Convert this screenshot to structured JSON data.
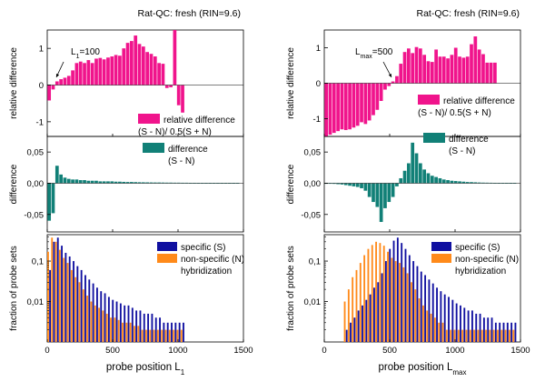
{
  "chart_data": [
    {
      "type": "bar",
      "title": "Rat-QC: fresh (RIN=9.6)",
      "xlabel": "probe position L",
      "xlabel_sub": "1",
      "xlim": [
        0,
        1500
      ],
      "xticks": [
        0,
        500,
        1000,
        1500
      ],
      "bin_width": 30,
      "colors": {
        "relative": "#F0148C",
        "difference": "#118077",
        "specific": "#1010A0",
        "nonspecific": "#FF8A1A"
      },
      "panels": {
        "relative": {
          "ylabel": "relative difference",
          "ylim": [
            -1.4,
            1.5
          ],
          "yticks": [
            -1,
            0,
            1
          ],
          "ytick_labels": [
            "-1",
            "0",
            "1"
          ],
          "x": [
            15,
            45,
            75,
            105,
            135,
            165,
            195,
            225,
            255,
            285,
            315,
            345,
            375,
            405,
            435,
            465,
            495,
            525,
            555,
            585,
            615,
            645,
            675,
            705,
            735,
            765,
            795,
            825,
            855,
            885,
            915,
            945,
            975,
            1005,
            1035
          ],
          "values": [
            -0.42,
            -0.12,
            0.1,
            0.16,
            0.2,
            0.25,
            0.4,
            0.6,
            0.64,
            0.6,
            0.68,
            0.6,
            0.72,
            0.74,
            0.7,
            0.75,
            0.78,
            0.82,
            0.8,
            1.0,
            1.15,
            1.2,
            1.35,
            1.12,
            1.05,
            0.9,
            0.85,
            0.78,
            0.6,
            0.58,
            -0.08,
            -0.06,
            1.5,
            -0.55,
            -0.75
          ],
          "annotation": "L",
          "annotation_sub": "1",
          "annotation_value": "=100",
          "legend": [
            "relative difference",
            "(S - N)/ 0.5(S + N)"
          ]
        },
        "difference": {
          "ylabel": "difference",
          "ylim": [
            -0.078,
            0.075
          ],
          "yticks": [
            -0.05,
            0,
            0.05
          ],
          "ytick_labels": [
            "-0,05",
            "0,00",
            "0,05"
          ],
          "x": [
            15,
            45,
            75,
            105,
            135,
            165,
            195,
            225,
            255,
            285,
            315,
            345,
            375,
            405,
            435,
            465,
            495,
            525,
            555,
            585,
            615,
            645,
            675,
            705,
            735,
            765,
            795,
            825,
            855,
            885,
            915,
            945,
            975,
            1005,
            1035,
            1065,
            1095,
            1125,
            1155,
            1185,
            1215,
            1245,
            1275,
            1305,
            1335,
            1365,
            1395,
            1425,
            1455
          ],
          "values": [
            -0.06,
            -0.048,
            0.028,
            0.014,
            0.009,
            0.007,
            0.006,
            0.006,
            0.005,
            0.005,
            0.004,
            0.004,
            0.004,
            0.003,
            0.003,
            0.003,
            0.003,
            0.0025,
            0.0025,
            0.0022,
            0.002,
            0.002,
            0.0018,
            0.0016,
            0.0015,
            0.0014,
            0.0013,
            0.0012,
            0.0012,
            0.0011,
            0.001,
            0.001,
            0.0009,
            0.0009,
            0.0008,
            0.0008,
            0.0007,
            0.0007,
            0.0006,
            0.0006,
            0.0006,
            0.0005,
            0.0005,
            0.0005,
            0.0004,
            0.0004,
            0.0004,
            0.0003,
            0.0003
          ],
          "legend": [
            "difference",
            "(S - N)"
          ]
        },
        "fraction": {
          "ylabel": "fraction of probe sets",
          "log": true,
          "ylim": [
            0.001,
            0.45
          ],
          "yticks": [
            0.01,
            0.1
          ],
          "ytick_labels": [
            "0,01",
            "0,1"
          ],
          "x": [
            15,
            45,
            75,
            105,
            135,
            165,
            195,
            225,
            255,
            285,
            315,
            345,
            375,
            405,
            435,
            465,
            495,
            525,
            555,
            585,
            615,
            645,
            675,
            705,
            735,
            765,
            795,
            825,
            855,
            885,
            915,
            945,
            975,
            1005,
            1035
          ],
          "specific": [
            0.06,
            0.3,
            0.38,
            0.24,
            0.16,
            0.13,
            0.1,
            0.075,
            0.06,
            0.045,
            0.035,
            0.028,
            0.022,
            0.018,
            0.016,
            0.013,
            0.011,
            0.01,
            0.009,
            0.008,
            0.008,
            0.007,
            0.006,
            0.006,
            0.005,
            0.005,
            0.005,
            0.004,
            0.004,
            0.003,
            0.003,
            0.003,
            0.003,
            0.003,
            0.003
          ],
          "nonspecific": [
            0.17,
            0.38,
            0.3,
            0.19,
            0.12,
            0.09,
            0.06,
            0.04,
            0.03,
            0.02,
            0.014,
            0.01,
            0.008,
            0.007,
            0.006,
            0.005,
            0.004,
            0.004,
            0.0035,
            0.003,
            0.003,
            0.003,
            0.0025,
            0.0025,
            0.002,
            0.002,
            0.002,
            0.002,
            0.002,
            0.002,
            0.002,
            0.002,
            0.002,
            0.002,
            0.002
          ],
          "legend": [
            "specific (S)",
            "non-specific (N)",
            "hybridization"
          ]
        }
      }
    },
    {
      "type": "bar",
      "title": "Rat-QC: fresh (RIN=9.6)",
      "xlabel": "probe position L",
      "xlabel_sub": "max",
      "xlim": [
        0,
        1500
      ],
      "xticks": [
        0,
        500,
        1000,
        1500
      ],
      "bin_width": 30,
      "colors": {
        "relative": "#F0148C",
        "difference": "#118077",
        "specific": "#1010A0",
        "nonspecific": "#FF8A1A"
      },
      "panels": {
        "relative": {
          "ylabel": "relative difference",
          "ylim": [
            -1.5,
            1.5
          ],
          "yticks": [
            -1,
            0,
            1
          ],
          "ytick_labels": [
            "-1",
            "0",
            "1"
          ],
          "x": [
            15,
            45,
            75,
            105,
            135,
            165,
            195,
            225,
            255,
            285,
            315,
            345,
            375,
            405,
            435,
            465,
            495,
            525,
            555,
            585,
            615,
            645,
            675,
            705,
            735,
            765,
            795,
            825,
            855,
            885,
            915,
            945,
            975,
            1005,
            1035,
            1065,
            1095,
            1125,
            1155,
            1185,
            1215,
            1245,
            1275,
            1305
          ],
          "values": [
            -1.55,
            -1.45,
            -1.4,
            -1.35,
            -1.3,
            -1.32,
            -1.3,
            -1.25,
            -1.2,
            -1.1,
            -1.15,
            -1.05,
            -0.9,
            -0.75,
            -0.5,
            -0.18,
            -0.08,
            0.05,
            0.2,
            0.55,
            0.88,
            0.98,
            0.85,
            1.02,
            0.98,
            0.8,
            0.62,
            0.6,
            0.95,
            0.75,
            0.75,
            0.7,
            0.8,
            1.0,
            0.75,
            0.72,
            0.75,
            1.1,
            1.32,
            0.95,
            0.82,
            0.58,
            0.58,
            0.58
          ],
          "annotation": "L",
          "annotation_sub": "max",
          "annotation_value": "=500",
          "legend": [
            "relative difference",
            "(S - N)/ 0.5(S + N)"
          ]
        },
        "difference": {
          "ylabel": "difference",
          "ylim": [
            -0.078,
            0.075
          ],
          "yticks": [
            -0.05,
            0,
            0.05
          ],
          "ytick_labels": [
            "-0,05",
            "0,00",
            "0,05"
          ],
          "x": [
            15,
            45,
            75,
            105,
            135,
            165,
            195,
            225,
            255,
            285,
            315,
            345,
            375,
            405,
            435,
            465,
            495,
            525,
            555,
            585,
            615,
            645,
            675,
            705,
            735,
            765,
            795,
            825,
            855,
            885,
            915,
            945,
            975,
            1005,
            1035,
            1065,
            1095,
            1125,
            1155,
            1185,
            1215,
            1245,
            1275,
            1305,
            1335,
            1365,
            1395,
            1425,
            1455
          ],
          "values": [
            -0.0005,
            -0.0008,
            -0.001,
            -0.0015,
            -0.002,
            -0.003,
            -0.004,
            -0.005,
            -0.006,
            -0.008,
            -0.012,
            -0.022,
            -0.03,
            -0.038,
            -0.062,
            -0.04,
            -0.03,
            -0.022,
            -0.005,
            0.008,
            0.02,
            0.032,
            0.065,
            0.048,
            0.032,
            0.022,
            0.016,
            0.012,
            0.01,
            0.008,
            0.006,
            0.005,
            0.004,
            0.0035,
            0.003,
            0.0025,
            0.002,
            0.0018,
            0.0015,
            0.0012,
            0.001,
            0.0009,
            0.0008,
            0.0007,
            0.0006,
            0.0005,
            0.0004,
            0.0003,
            0.0003
          ],
          "legend": [
            "difference",
            "(S - N)"
          ]
        },
        "fraction": {
          "ylabel": "fraction of probe sets",
          "log": true,
          "ylim": [
            0.001,
            0.45
          ],
          "yticks": [
            0.01,
            0.1
          ],
          "ytick_labels": [
            "0,01",
            "0,1"
          ],
          "x": [
            165,
            195,
            225,
            255,
            285,
            315,
            345,
            375,
            405,
            435,
            465,
            495,
            525,
            555,
            585,
            615,
            645,
            675,
            705,
            735,
            765,
            795,
            825,
            855,
            885,
            915,
            945,
            975,
            1005,
            1035,
            1065,
            1095,
            1125,
            1155,
            1185,
            1215,
            1245,
            1275,
            1305,
            1335,
            1365,
            1395,
            1425,
            1455
          ],
          "specific": [
            0.002,
            0.003,
            0.004,
            0.006,
            0.008,
            0.011,
            0.015,
            0.022,
            0.03,
            0.05,
            0.1,
            0.2,
            0.32,
            0.38,
            0.28,
            0.2,
            0.14,
            0.1,
            0.075,
            0.055,
            0.045,
            0.035,
            0.028,
            0.022,
            0.018,
            0.015,
            0.013,
            0.011,
            0.009,
            0.008,
            0.007,
            0.006,
            0.006,
            0.005,
            0.005,
            0.004,
            0.004,
            0.004,
            0.003,
            0.003,
            0.003,
            0.003,
            0.003,
            0.003
          ],
          "nonspecific": [
            0.01,
            0.02,
            0.04,
            0.06,
            0.09,
            0.14,
            0.2,
            0.25,
            0.3,
            0.28,
            0.24,
            0.17,
            0.12,
            0.1,
            0.09,
            0.07,
            0.05,
            0.03,
            0.02,
            0.012,
            0.008,
            0.006,
            0.005,
            0.004,
            0.003,
            0.003,
            0.002,
            0.002,
            0.002,
            0.002,
            0.002,
            0.002,
            0.002,
            0.002,
            0.002,
            0.002,
            0.002,
            0.002,
            0.002,
            0.002,
            0.002,
            0.002,
            0.002,
            0.002
          ],
          "legend": [
            "specific (S)",
            "non-specific (N)",
            "hybridization"
          ]
        }
      }
    }
  ]
}
